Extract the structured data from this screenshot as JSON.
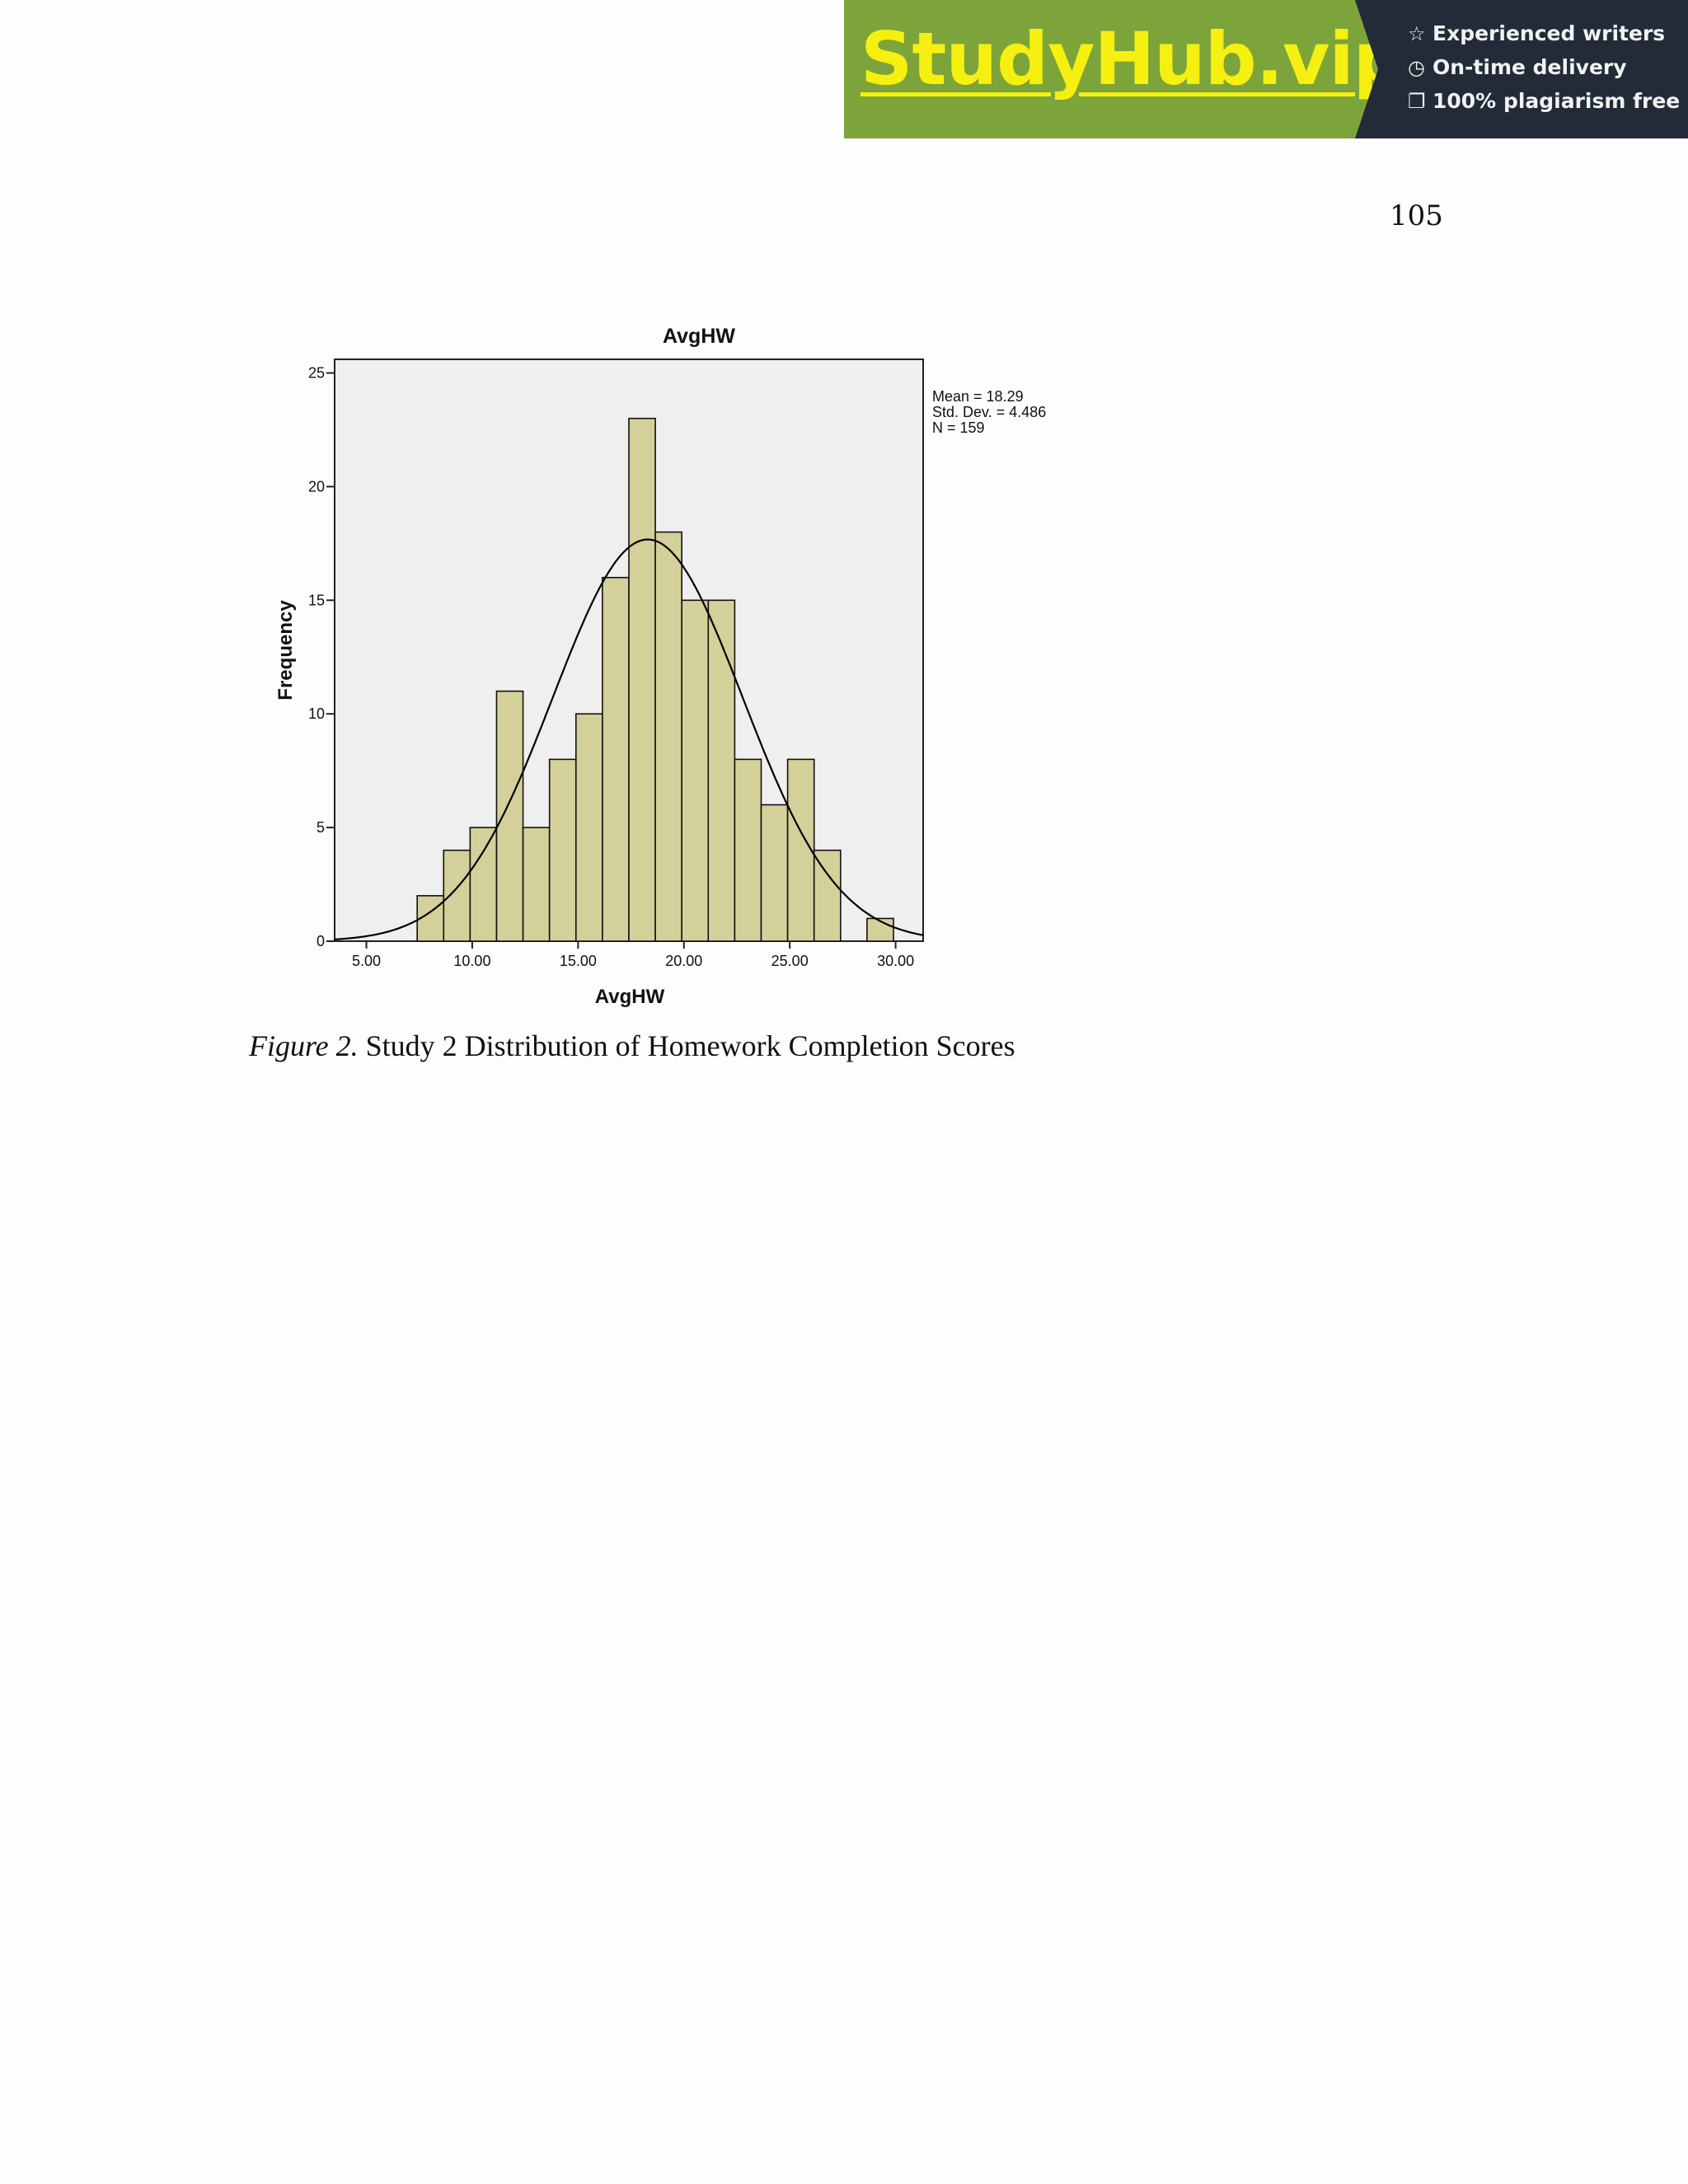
{
  "banner": {
    "logo": "StudyHub.vip",
    "features": [
      {
        "icon": "star-outline-icon",
        "glyph": "☆",
        "text": "Experienced writers"
      },
      {
        "icon": "clock-icon",
        "glyph": "◷",
        "text": "On-time delivery"
      },
      {
        "icon": "copy-icon",
        "glyph": "❐",
        "text": "100% plagiarism free"
      }
    ],
    "colors": {
      "left_bg": "#7da43a",
      "logo": "#f5f010",
      "right_bg": "#222b37"
    }
  },
  "page_number": "105",
  "caption": {
    "label": "Figure 2.",
    "text": " Study 2 Distribution of Homework Completion Scores"
  },
  "chart_data": {
    "type": "bar",
    "subtype": "histogram",
    "title": "AvgHW",
    "xlabel": "AvgHW",
    "ylabel": "Frequency",
    "xlim": [
      3.5,
      31.3
    ],
    "ylim": [
      0,
      25
    ],
    "x_ticks": [
      5,
      10,
      15,
      20,
      25,
      30
    ],
    "x_tick_labels": [
      "5.00",
      "10.00",
      "15.00",
      "20.00",
      "25.00",
      "30.00"
    ],
    "y_ticks": [
      0,
      5,
      10,
      15,
      20,
      25
    ],
    "y_tick_labels": [
      "0",
      "5",
      "10",
      "15",
      "20",
      "25"
    ],
    "bin_width": 1.25,
    "bins": [
      {
        "start": 7.4,
        "count": 2
      },
      {
        "start": 8.65,
        "count": 4
      },
      {
        "start": 9.9,
        "count": 5
      },
      {
        "start": 11.15,
        "count": 11
      },
      {
        "start": 12.4,
        "count": 5
      },
      {
        "start": 13.65,
        "count": 8
      },
      {
        "start": 14.9,
        "count": 10
      },
      {
        "start": 16.15,
        "count": 16
      },
      {
        "start": 17.4,
        "count": 23
      },
      {
        "start": 18.65,
        "count": 18
      },
      {
        "start": 19.9,
        "count": 15
      },
      {
        "start": 21.15,
        "count": 15
      },
      {
        "start": 22.4,
        "count": 8
      },
      {
        "start": 23.65,
        "count": 6
      },
      {
        "start": 24.9,
        "count": 8
      },
      {
        "start": 26.15,
        "count": 4
      },
      {
        "start": 28.65,
        "count": 1
      }
    ],
    "normal_curve": {
      "mean": 18.29,
      "sd": 4.486,
      "n": 159
    },
    "stats_legend": [
      "Mean = 18.29",
      "Std. Dev. = 4.486",
      "N = 159"
    ],
    "grid": false,
    "legend_position": "right",
    "colors": {
      "bar_fill": "#d4d09a",
      "bar_stroke": "#111111",
      "plot_bg": "#f0eff0",
      "curve": "#000000"
    }
  }
}
